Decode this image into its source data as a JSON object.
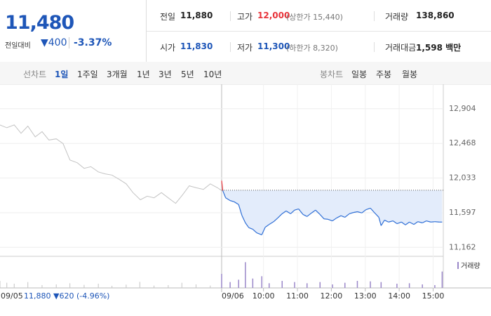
{
  "header": {
    "price": "11,480",
    "change_label": "전일대비",
    "change": "▼400",
    "change_pct": "-3.37%"
  },
  "stats": [
    {
      "label": "전일",
      "value": "11,880"
    },
    {
      "label": "고가",
      "value": "12,000",
      "note": "(상한가 15,440)"
    },
    {
      "label": "거래량",
      "value": "138,860"
    },
    {
      "label": "시가",
      "value": "11,830"
    },
    {
      "label": "저가",
      "value": "11,300",
      "note": "(하한가 8,320)"
    },
    {
      "label": "거래대금",
      "value": "1,598 백만"
    }
  ],
  "tabs": {
    "line_label": "선차트",
    "line": [
      "1일",
      "1주일",
      "3개월",
      "1년",
      "3년",
      "5년",
      "10년"
    ],
    "active": 0,
    "candle_label": "봉차트",
    "candle": [
      "일봉",
      "주봉",
      "월봉"
    ]
  },
  "chart_data": {
    "type": "line",
    "ylim": [
      11050,
      13140
    ],
    "yticks": [
      {
        "value": 12904,
        "label": "12,904"
      },
      {
        "value": 12468,
        "label": "12,468"
      },
      {
        "value": 12033,
        "label": "12,033"
      },
      {
        "value": 11597,
        "label": "11,597"
      },
      {
        "value": 11162,
        "label": "11,162"
      }
    ],
    "base": 11880,
    "footer": "11,880 ▼620 (-4.96%)",
    "prev_day": {
      "date": "09/05",
      "color": "#c4c4c4",
      "xlim": [
        540,
        930
      ],
      "x": [
        540,
        552,
        565,
        577,
        589,
        602,
        614,
        626,
        639,
        651,
        663,
        676,
        688,
        700,
        713,
        725,
        737,
        750,
        762,
        774,
        787,
        799,
        811,
        824,
        836,
        849,
        861,
        873,
        886,
        898,
        910,
        923,
        930
      ],
      "values": [
        12700,
        12665,
        12700,
        12595,
        12685,
        12550,
        12615,
        12510,
        12525,
        12465,
        12260,
        12225,
        12155,
        12175,
        12110,
        12085,
        12070,
        12015,
        11960,
        11850,
        11760,
        11805,
        11785,
        11850,
        11785,
        11715,
        11820,
        11935,
        11910,
        11890,
        11960,
        11910,
        11875
      ]
    },
    "today": {
      "date": "09/06",
      "color": "#2f6fd6",
      "up_color": "#e8333a",
      "fill": "#e3ecfb",
      "xlim": [
        526,
        918
      ],
      "xticks": [
        {
          "value": 600,
          "label": "10:00"
        },
        {
          "value": 660,
          "label": "11:00"
        },
        {
          "value": 720,
          "label": "12:00"
        },
        {
          "value": 780,
          "label": "13:00"
        },
        {
          "value": 840,
          "label": "14:00"
        },
        {
          "value": 900,
          "label": "15:00"
        }
      ],
      "x": [
        526,
        528,
        533,
        541,
        548,
        556,
        562,
        568,
        574,
        581,
        588,
        597,
        603,
        610,
        618,
        625,
        633,
        640,
        648,
        655,
        662,
        670,
        677,
        685,
        692,
        700,
        707,
        714,
        722,
        729,
        737,
        744,
        752,
        759,
        766,
        774,
        781,
        789,
        796,
        804,
        808,
        814,
        821,
        829,
        836,
        844,
        851,
        858,
        866,
        873,
        881,
        888,
        896,
        903,
        911,
        916
      ],
      "values": [
        12000,
        11875,
        11785,
        11750,
        11735,
        11700,
        11560,
        11470,
        11410,
        11390,
        11345,
        11320,
        11415,
        11450,
        11485,
        11530,
        11585,
        11620,
        11585,
        11630,
        11645,
        11575,
        11550,
        11595,
        11630,
        11575,
        11520,
        11515,
        11495,
        11530,
        11560,
        11540,
        11585,
        11600,
        11610,
        11595,
        11635,
        11655,
        11600,
        11540,
        11435,
        11505,
        11480,
        11495,
        11460,
        11480,
        11445,
        11480,
        11450,
        11485,
        11470,
        11495,
        11480,
        11485,
        11480,
        11480
      ]
    },
    "volume": {
      "name": "거래량",
      "color": "#9a87c9",
      "prev_color": "#c4c4c4",
      "ylim": [
        0,
        12000
      ],
      "prev_x": [
        540,
        552,
        565,
        589,
        614,
        639,
        663,
        688,
        713,
        737,
        762,
        786,
        811,
        836,
        860,
        885,
        910,
        930
      ],
      "prev_values": [
        3000,
        2200,
        1800,
        2500,
        1200,
        1500,
        2000,
        1300,
        1800,
        900,
        1400,
        2600,
        1000,
        1200,
        2200,
        1500,
        1000,
        1800
      ],
      "today_x": [
        526,
        541,
        556,
        568,
        581,
        597,
        610,
        633,
        655,
        677,
        700,
        722,
        744,
        766,
        789,
        808,
        836,
        858,
        881,
        903,
        916
      ],
      "today_values": [
        6000,
        2500,
        3500,
        11000,
        4000,
        5000,
        2000,
        3000,
        2500,
        2000,
        2500,
        1500,
        2200,
        3000,
        2800,
        2500,
        1800,
        2000,
        1500,
        1200,
        7000
      ]
    }
  }
}
